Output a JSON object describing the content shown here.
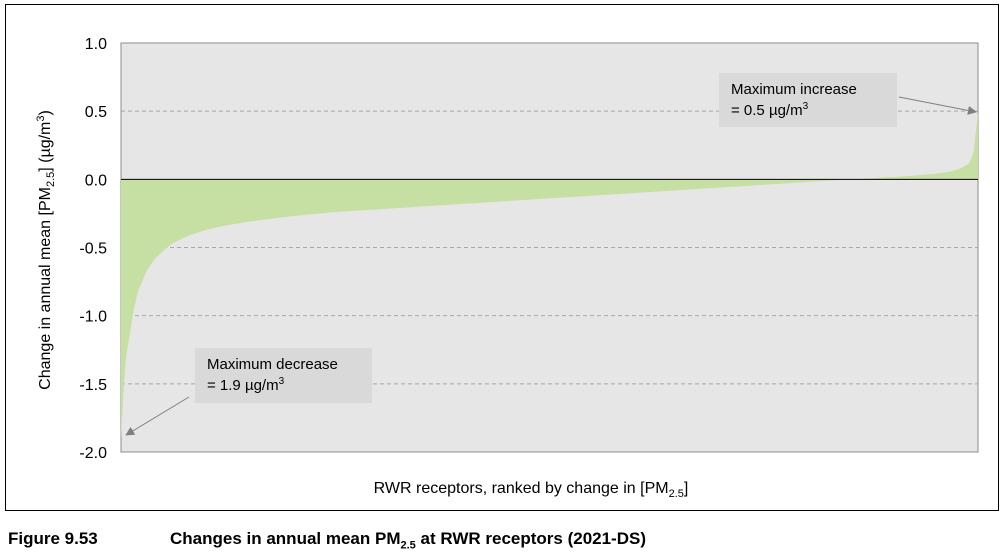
{
  "chart_data": {
    "type": "area",
    "ylabel_main": "Change in annual mean [PM",
    "ylabel_sub": "2.5",
    "ylabel_tail": "] (µg/m",
    "ylabel_sup": "3",
    "ylabel_end": ")",
    "xlabel_main": "RWR receptors, ranked by change in [PM",
    "xlabel_sub": "2.5",
    "xlabel_end": "]",
    "ylim": [
      -2.0,
      1.0
    ],
    "yticks": [
      "1.0",
      "0.5",
      "0.0",
      "-0.5",
      "-1.0",
      "-1.5",
      "-2.0"
    ],
    "ytick_values": [
      1.0,
      0.5,
      0.0,
      -0.5,
      -1.0,
      -1.5,
      -2.0
    ],
    "grid": "horizontal-dashed",
    "series_color": "#c6e0a4",
    "plot_background": "#e6e6e6",
    "x": [
      0,
      0.3,
      0.6,
      1,
      1.5,
      2,
      3,
      4,
      5,
      6,
      8,
      10,
      12,
      15,
      20,
      25,
      30,
      40,
      50,
      60,
      70,
      80,
      85,
      88,
      91,
      93,
      95,
      96,
      97,
      98,
      99,
      99.5,
      100
    ],
    "values": [
      -1.9,
      -1.55,
      -1.3,
      -1.15,
      -0.95,
      -0.82,
      -0.67,
      -0.58,
      -0.52,
      -0.47,
      -0.41,
      -0.37,
      -0.34,
      -0.31,
      -0.27,
      -0.24,
      -0.22,
      -0.18,
      -0.14,
      -0.1,
      -0.06,
      -0.02,
      0.0,
      0.01,
      0.02,
      0.03,
      0.04,
      0.05,
      0.06,
      0.08,
      0.12,
      0.2,
      0.5
    ],
    "annotations": [
      {
        "line1": "Maximum increase",
        "line2_main": "= 0.5 µg/m",
        "line2_sup": "3",
        "target_x": 100,
        "target_y": 0.5
      },
      {
        "line1": "Maximum decrease",
        "line2_main": "= 1.9 µg/m",
        "line2_sup": "3",
        "target_x": 0,
        "target_y": -1.9
      }
    ]
  },
  "caption": {
    "number": "Figure 9.53",
    "text_main": "Changes in annual mean PM",
    "text_sub": "2.5",
    "text_end": " at RWR receptors (2021-DS)"
  }
}
